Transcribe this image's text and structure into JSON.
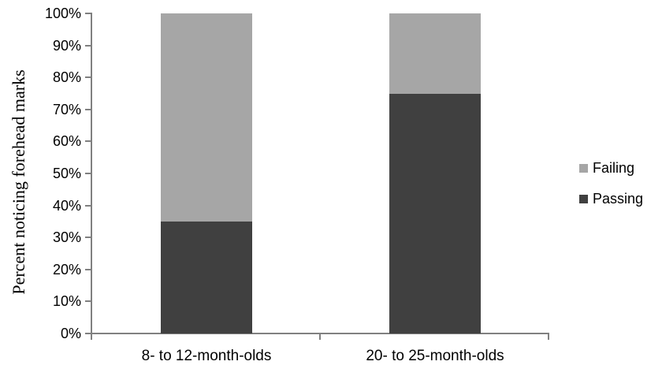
{
  "chart_data": {
    "type": "bar",
    "subtype": "stacked-column",
    "title": "",
    "ylabel": "Percent noticing forehead marks",
    "xlabel": "",
    "categories": [
      "8- to 12-month-olds",
      "20- to 25-month-olds"
    ],
    "series": [
      {
        "name": "Passing",
        "values": [
          35,
          75
        ],
        "color": "#404040"
      },
      {
        "name": "Failing",
        "values": [
          65,
          25
        ],
        "color": "#a6a6a6"
      }
    ],
    "ylim": [
      0,
      100
    ],
    "ytick_step": 10,
    "ytick_suffix": "%",
    "ytick_labels": [
      "0%",
      "10%",
      "20%",
      "30%",
      "40%",
      "50%",
      "60%",
      "70%",
      "80%",
      "90%",
      "100%"
    ],
    "grid": "off",
    "legend_position": "right",
    "legend_order": [
      "Failing",
      "Passing"
    ],
    "axis_color": "#808080",
    "text_color": "#000000",
    "background": "#ffffff"
  }
}
